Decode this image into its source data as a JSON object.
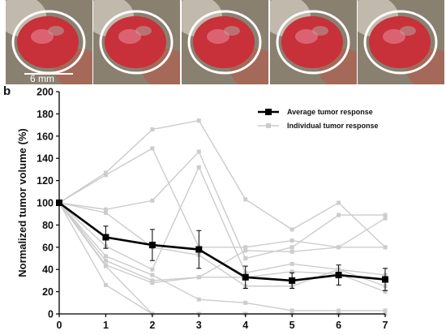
{
  "photos": {
    "scale_label": "6 mm",
    "count": 5,
    "ring_color": "#ffffff",
    "tissue_color": "#c8303a",
    "fur_color": "#8a8070"
  },
  "panel_letter": "b",
  "chart_data": {
    "type": "line",
    "title": "",
    "xlabel": "",
    "ylabel": "Normalized tumor volume (%)",
    "xlim": [
      0,
      7
    ],
    "ylim": [
      0,
      200
    ],
    "x": [
      0,
      1,
      2,
      3,
      4,
      5,
      6,
      7
    ],
    "x_ticks": [
      "0",
      "1",
      "2",
      "3",
      "4",
      "5",
      "6",
      "7"
    ],
    "y_ticks": [
      "0",
      "20",
      "40",
      "60",
      "80",
      "100",
      "120",
      "140",
      "160",
      "180",
      "200"
    ],
    "grid": false,
    "legend_position": "top-right",
    "average": {
      "name": "Average tumor response",
      "color": "#000000",
      "values": [
        100,
        69,
        62,
        58,
        33,
        30,
        35,
        31
      ],
      "error": [
        0,
        10,
        14,
        17,
        10,
        7,
        9,
        10
      ]
    },
    "individual": {
      "name": "Individual tumor response",
      "color": "#cccccc",
      "series": [
        [
          100,
          127,
          166,
          174,
          103,
          76,
          100,
          60
        ],
        [
          100,
          125,
          149,
          60,
          60,
          66,
          60,
          86
        ],
        [
          100,
          94,
          102,
          146,
          50,
          60,
          89,
          89
        ],
        [
          100,
          61,
          40,
          132,
          37,
          45,
          40,
          35
        ],
        [
          100,
          52,
          35,
          13,
          10,
          3,
          3,
          3
        ],
        [
          100,
          48,
          30,
          33,
          33,
          38,
          36,
          20
        ],
        [
          100,
          44,
          28,
          33,
          57,
          56,
          60,
          60
        ],
        [
          100,
          43,
          0,
          0,
          0,
          0,
          0,
          0
        ],
        [
          100,
          26,
          0,
          0,
          0,
          0,
          0,
          0
        ],
        [
          100,
          91,
          60,
          53,
          25,
          25,
          40,
          25
        ]
      ]
    }
  }
}
